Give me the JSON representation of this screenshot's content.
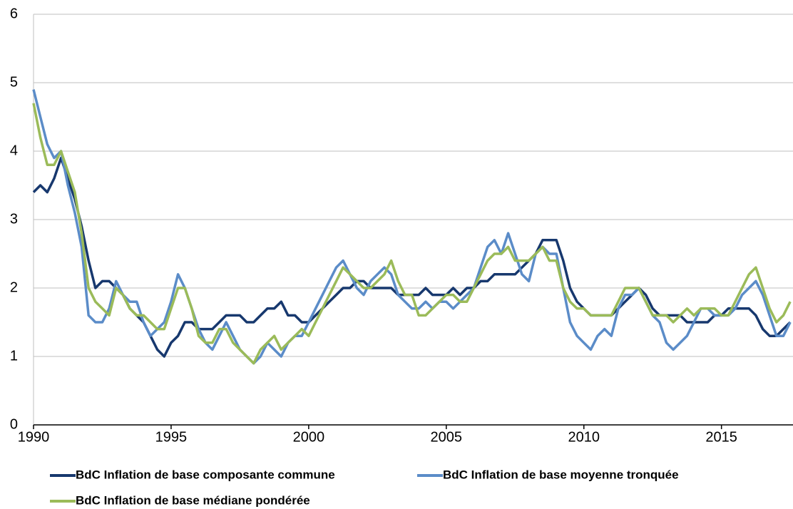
{
  "chart_data": {
    "type": "line",
    "x": [
      1990,
      1990.25,
      1990.5,
      1990.75,
      1991,
      1991.25,
      1991.5,
      1991.75,
      1992,
      1992.25,
      1992.5,
      1992.75,
      1993,
      1993.25,
      1993.5,
      1993.75,
      1994,
      1994.25,
      1994.5,
      1994.75,
      1995,
      1995.25,
      1995.5,
      1995.75,
      1996,
      1996.25,
      1996.5,
      1996.75,
      1997,
      1997.25,
      1997.5,
      1997.75,
      1998,
      1998.25,
      1998.5,
      1998.75,
      1999,
      1999.25,
      1999.5,
      1999.75,
      2000,
      2000.25,
      2000.5,
      2000.75,
      2001,
      2001.25,
      2001.5,
      2001.75,
      2002,
      2002.25,
      2002.5,
      2002.75,
      2003,
      2003.25,
      2003.5,
      2003.75,
      2004,
      2004.25,
      2004.5,
      2004.75,
      2005,
      2005.25,
      2005.5,
      2005.75,
      2006,
      2006.25,
      2006.5,
      2006.75,
      2007,
      2007.25,
      2007.5,
      2007.75,
      2008,
      2008.25,
      2008.5,
      2008.75,
      2009,
      2009.25,
      2009.5,
      2009.75,
      2010,
      2010.25,
      2010.5,
      2010.75,
      2011,
      2011.25,
      2011.5,
      2011.75,
      2012,
      2012.25,
      2012.5,
      2012.75,
      2013,
      2013.25,
      2013.5,
      2013.75,
      2014,
      2014.25,
      2014.5,
      2014.75,
      2015,
      2015.25,
      2015.5,
      2015.75,
      2016,
      2016.25,
      2016.5,
      2016.75,
      2017,
      2017.25,
      2017.5
    ],
    "series": [
      {
        "name": "BdC Inflation de base composante commune",
        "color": "#17386e",
        "values": [
          3.4,
          3.5,
          3.4,
          3.6,
          3.9,
          3.6,
          3.3,
          2.9,
          2.4,
          2.0,
          2.1,
          2.1,
          2.0,
          1.9,
          1.7,
          1.6,
          1.5,
          1.3,
          1.1,
          1.0,
          1.2,
          1.3,
          1.5,
          1.5,
          1.4,
          1.4,
          1.4,
          1.5,
          1.6,
          1.6,
          1.6,
          1.5,
          1.5,
          1.6,
          1.7,
          1.7,
          1.8,
          1.6,
          1.6,
          1.5,
          1.5,
          1.6,
          1.7,
          1.8,
          1.9,
          2.0,
          2.0,
          2.1,
          2.1,
          2.0,
          2.0,
          2.0,
          2.0,
          1.9,
          1.9,
          1.9,
          1.9,
          2.0,
          1.9,
          1.9,
          1.9,
          2.0,
          1.9,
          2.0,
          2.0,
          2.1,
          2.1,
          2.2,
          2.2,
          2.2,
          2.2,
          2.3,
          2.4,
          2.5,
          2.7,
          2.7,
          2.7,
          2.4,
          2.0,
          1.8,
          1.7,
          1.6,
          1.6,
          1.6,
          1.6,
          1.7,
          1.8,
          1.9,
          2.0,
          1.9,
          1.7,
          1.6,
          1.6,
          1.6,
          1.6,
          1.5,
          1.5,
          1.5,
          1.5,
          1.6,
          1.6,
          1.7,
          1.7,
          1.7,
          1.7,
          1.6,
          1.4,
          1.3,
          1.3,
          1.4,
          1.5
        ]
      },
      {
        "name": "BdC Inflation de base moyenne tronquée",
        "color": "#5b8cc8",
        "values": [
          4.9,
          4.5,
          4.1,
          3.9,
          4.0,
          3.5,
          3.1,
          2.6,
          1.6,
          1.5,
          1.5,
          1.7,
          2.1,
          1.9,
          1.8,
          1.8,
          1.5,
          1.3,
          1.4,
          1.5,
          1.8,
          2.2,
          2.0,
          1.7,
          1.4,
          1.2,
          1.1,
          1.3,
          1.5,
          1.3,
          1.1,
          1.0,
          0.9,
          1.0,
          1.2,
          1.1,
          1.0,
          1.2,
          1.3,
          1.3,
          1.5,
          1.7,
          1.9,
          2.1,
          2.3,
          2.4,
          2.2,
          2.0,
          1.9,
          2.1,
          2.2,
          2.3,
          2.2,
          1.9,
          1.8,
          1.7,
          1.7,
          1.8,
          1.7,
          1.8,
          1.8,
          1.7,
          1.8,
          1.9,
          2.0,
          2.3,
          2.6,
          2.7,
          2.5,
          2.8,
          2.5,
          2.2,
          2.1,
          2.5,
          2.6,
          2.5,
          2.5,
          2.0,
          1.5,
          1.3,
          1.2,
          1.1,
          1.3,
          1.4,
          1.3,
          1.7,
          1.9,
          1.9,
          2.0,
          1.8,
          1.6,
          1.5,
          1.2,
          1.1,
          1.2,
          1.3,
          1.5,
          1.7,
          1.7,
          1.6,
          1.6,
          1.6,
          1.7,
          1.9,
          2.0,
          2.1,
          1.9,
          1.6,
          1.3,
          1.3,
          1.5
        ]
      },
      {
        "name": "BdC Inflation de base médiane pondérée",
        "color": "#9bbb59",
        "values": [
          4.7,
          4.2,
          3.8,
          3.8,
          4.0,
          3.7,
          3.4,
          2.8,
          2.0,
          1.8,
          1.7,
          1.6,
          2.0,
          1.9,
          1.7,
          1.6,
          1.6,
          1.5,
          1.4,
          1.4,
          1.7,
          2.0,
          2.0,
          1.7,
          1.3,
          1.2,
          1.2,
          1.4,
          1.4,
          1.2,
          1.1,
          1.0,
          0.9,
          1.1,
          1.2,
          1.3,
          1.1,
          1.2,
          1.3,
          1.4,
          1.3,
          1.5,
          1.7,
          1.9,
          2.1,
          2.3,
          2.2,
          2.1,
          2.0,
          2.0,
          2.1,
          2.2,
          2.4,
          2.1,
          1.9,
          1.9,
          1.6,
          1.6,
          1.7,
          1.8,
          1.9,
          1.9,
          1.8,
          1.8,
          2.0,
          2.2,
          2.4,
          2.5,
          2.5,
          2.6,
          2.4,
          2.4,
          2.4,
          2.5,
          2.6,
          2.4,
          2.4,
          2.0,
          1.8,
          1.7,
          1.7,
          1.6,
          1.6,
          1.6,
          1.6,
          1.8,
          2.0,
          2.0,
          2.0,
          1.8,
          1.6,
          1.6,
          1.6,
          1.5,
          1.6,
          1.7,
          1.6,
          1.7,
          1.7,
          1.7,
          1.6,
          1.6,
          1.8,
          2.0,
          2.2,
          2.3,
          2.0,
          1.7,
          1.5,
          1.6,
          1.8
        ]
      }
    ],
    "xlim": [
      1990,
      2017.6
    ],
    "xticks": [
      1990,
      1995,
      2000,
      2005,
      2010,
      2015
    ],
    "ylim": [
      0,
      6
    ],
    "yticks": [
      0,
      1,
      2,
      3,
      4,
      5,
      6
    ],
    "grid": true
  }
}
